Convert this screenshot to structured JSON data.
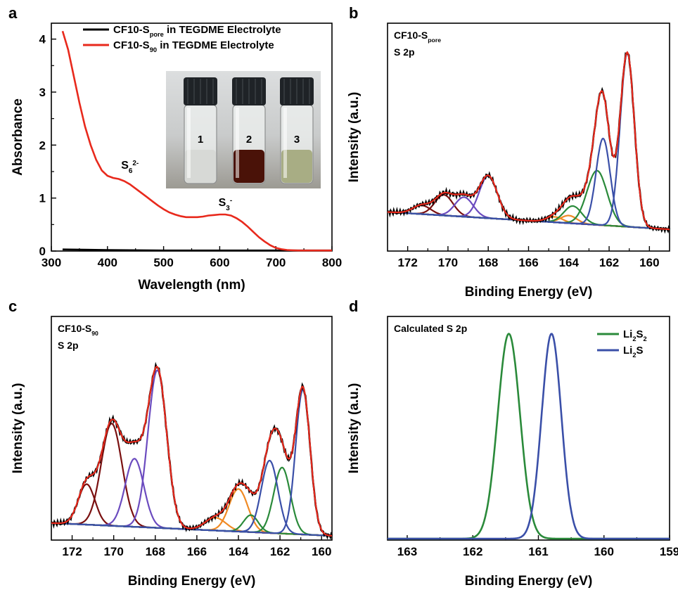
{
  "chart_data": [
    {
      "panel": "a",
      "type": "line",
      "xlabel": "Wavelength (nm)",
      "ylabel": "Absorbance",
      "xlim": [
        300,
        800
      ],
      "ylim": [
        0,
        4.3
      ],
      "xticks": [
        "300",
        "400",
        "500",
        "600",
        "700",
        "800"
      ],
      "yticks": [
        "0",
        "1",
        "2",
        "3",
        "4"
      ],
      "legend_position": "top-right",
      "series": [
        {
          "name": "CF10-S",
          "name_sub": "pore",
          "name_suffix": " in TEGDME Electrolyte",
          "color": "#000000",
          "x": [
            320,
            400,
            500,
            600,
            700,
            800
          ],
          "y": [
            0.03,
            0.02,
            0.01,
            0.01,
            0.01,
            0.01
          ]
        },
        {
          "name": "CF10-S",
          "name_sub": "90",
          "name_suffix": " in TEGDME Electrolyte",
          "color": "#e8291c",
          "x": [
            320,
            330,
            340,
            350,
            360,
            370,
            380,
            390,
            400,
            410,
            420,
            430,
            440,
            450,
            460,
            470,
            480,
            490,
            500,
            510,
            520,
            530,
            540,
            550,
            560,
            570,
            580,
            590,
            600,
            610,
            620,
            630,
            640,
            650,
            660,
            670,
            680,
            690,
            700,
            710,
            720,
            730,
            740,
            750,
            760,
            780,
            800
          ],
          "y": [
            4.15,
            3.8,
            3.3,
            2.8,
            2.35,
            2.0,
            1.72,
            1.52,
            1.42,
            1.38,
            1.36,
            1.32,
            1.26,
            1.18,
            1.1,
            1.02,
            0.94,
            0.86,
            0.79,
            0.73,
            0.69,
            0.66,
            0.64,
            0.64,
            0.64,
            0.65,
            0.67,
            0.68,
            0.69,
            0.69,
            0.67,
            0.62,
            0.55,
            0.46,
            0.36,
            0.26,
            0.18,
            0.11,
            0.06,
            0.035,
            0.02,
            0.015,
            0.01,
            0.01,
            0.01,
            0.01,
            0.01
          ]
        }
      ],
      "annotations": [
        {
          "text": "S",
          "sub": "6",
          "sup": "2-",
          "x": 440,
          "y": 1.55
        },
        {
          "text": "S",
          "sub": "3",
          "sup": "-",
          "x": 610,
          "y": 0.85
        }
      ],
      "inset_labels": [
        "1",
        "2",
        "3"
      ]
    },
    {
      "panel": "b",
      "type": "line",
      "title": "CF10-S",
      "title_sub": "pore",
      "subtitle": "S 2p",
      "xlabel": "Binding Energy (eV)",
      "ylabel": "Intensity (a.u.)",
      "xlim": [
        173,
        159
      ],
      "xticks": [
        "172",
        "170",
        "168",
        "166",
        "164",
        "162",
        "160"
      ],
      "ylim": [
        0,
        1.05
      ],
      "background": {
        "x": [
          173,
          159
        ],
        "y": [
          0.18,
          0.1
        ]
      },
      "peaks": [
        {
          "center": 171.3,
          "height": 0.04,
          "width": 0.45,
          "color": "#7a1010"
        },
        {
          "center": 170.2,
          "height": 0.095,
          "width": 0.45,
          "color": "#7a1010"
        },
        {
          "center": 169.2,
          "height": 0.09,
          "width": 0.45,
          "color": "#6b4bbf"
        },
        {
          "center": 168.0,
          "height": 0.195,
          "width": 0.45,
          "color": "#6b4bbf"
        },
        {
          "center": 164.7,
          "height": 0.025,
          "width": 0.4,
          "color": "#f08a24"
        },
        {
          "center": 164.0,
          "height": 0.035,
          "width": 0.4,
          "color": "#f08a24"
        },
        {
          "center": 163.8,
          "height": 0.08,
          "width": 0.45,
          "color": "#2a8a3a"
        },
        {
          "center": 162.6,
          "height": 0.25,
          "width": 0.5,
          "color": "#2a8a3a"
        },
        {
          "center": 162.3,
          "height": 0.4,
          "width": 0.35,
          "color": "#3a4fa8"
        },
        {
          "center": 161.1,
          "height": 0.8,
          "width": 0.35,
          "color": "#3a4fa8"
        }
      ]
    },
    {
      "panel": "c",
      "type": "line",
      "title": "CF10-S",
      "title_sub": "90",
      "subtitle": "S 2p",
      "xlabel": "Binding Energy (eV)",
      "ylabel": "Intensity (a.u.)",
      "xlim": [
        173,
        159.5
      ],
      "xticks": [
        "172",
        "170",
        "168",
        "166",
        "164",
        "162",
        "160"
      ],
      "ylim": [
        0,
        1.05
      ],
      "background": {
        "x": [
          173,
          159.5
        ],
        "y": [
          0.08,
          0.02
        ]
      },
      "peaks": [
        {
          "center": 171.3,
          "height": 0.19,
          "width": 0.4,
          "color": "#7a1010"
        },
        {
          "center": 170.1,
          "height": 0.48,
          "width": 0.5,
          "color": "#7a1010"
        },
        {
          "center": 169.0,
          "height": 0.32,
          "width": 0.45,
          "color": "#6b4bbf"
        },
        {
          "center": 167.9,
          "height": 0.74,
          "width": 0.45,
          "color": "#6b4bbf"
        },
        {
          "center": 165.1,
          "height": 0.06,
          "width": 0.5,
          "color": "#f08a24"
        },
        {
          "center": 164.0,
          "height": 0.2,
          "width": 0.45,
          "color": "#f08a24"
        },
        {
          "center": 163.4,
          "height": 0.08,
          "width": 0.35,
          "color": "#2a8a3a"
        },
        {
          "center": 161.9,
          "height": 0.31,
          "width": 0.4,
          "color": "#2a8a3a"
        },
        {
          "center": 162.5,
          "height": 0.34,
          "width": 0.4,
          "color": "#3a4fa8"
        },
        {
          "center": 160.9,
          "height": 0.68,
          "width": 0.35,
          "color": "#3a4fa8"
        }
      ]
    },
    {
      "panel": "d",
      "type": "line",
      "title": "Calculated S 2p",
      "xlabel": "Binding Energy (eV)",
      "ylabel": "Intensity (a.u.)",
      "xlim": [
        163.3,
        159
      ],
      "xticks": [
        "163",
        "162",
        "161",
        "160",
        "159"
      ],
      "ylim": [
        0,
        1.05
      ],
      "legend_position": "top-right",
      "series": [
        {
          "name": "Li",
          "name_sub1": "2",
          "name_mid": "S",
          "name_sub2": "2",
          "color": "#2a8a3a",
          "center": 161.45,
          "height": 1.0,
          "width": 0.17
        },
        {
          "name": "Li",
          "name_sub1": "2",
          "name_mid": "S",
          "name_sub2": "",
          "color": "#3a4fa8",
          "center": 160.8,
          "height": 1.0,
          "width": 0.15
        }
      ]
    }
  ],
  "panel_letters": [
    "a",
    "b",
    "c",
    "d"
  ],
  "colors": {
    "axis": "#000000",
    "envelope_red": "#e8291c",
    "raw_black": "#000000",
    "background_line": "#7a1010"
  }
}
